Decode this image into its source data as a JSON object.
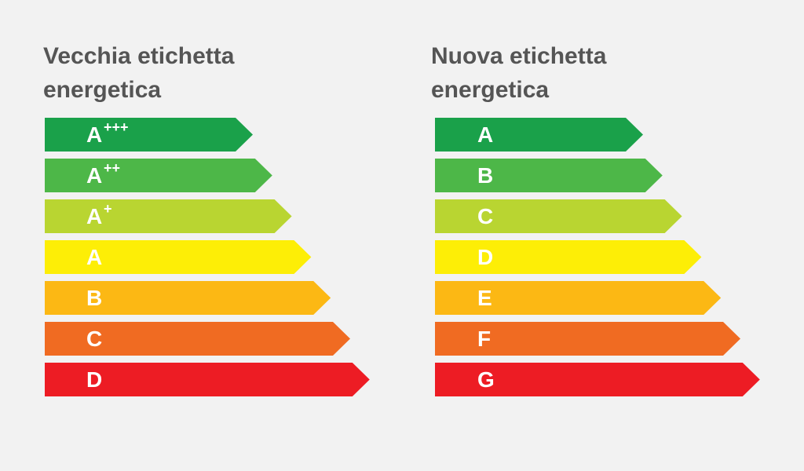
{
  "left": {
    "title": "Vecchia etichetta energetica",
    "rows": [
      {
        "text": "A",
        "sup": "+++",
        "color": "#1aa14a"
      },
      {
        "text": "A",
        "sup": "++",
        "color": "#4db748"
      },
      {
        "text": "A",
        "sup": "+",
        "color": "#b9d531"
      },
      {
        "text": "A",
        "color": "#fdee06"
      },
      {
        "text": "B",
        "color": "#fcb814"
      },
      {
        "text": "C",
        "color": "#f06b22"
      },
      {
        "text": "D",
        "color": "#ed1c24"
      }
    ]
  },
  "right": {
    "title": "Nuova etichetta energetica",
    "rows": [
      {
        "text": "A",
        "color": "#1aa14a"
      },
      {
        "text": "B",
        "color": "#4db748"
      },
      {
        "text": "C",
        "color": "#b9d531"
      },
      {
        "text": "D",
        "color": "#fdee06"
      },
      {
        "text": "E",
        "color": "#fcb814"
      },
      {
        "text": "F",
        "color": "#f06b22"
      },
      {
        "text": "G",
        "color": "#ed1c24"
      }
    ]
  }
}
